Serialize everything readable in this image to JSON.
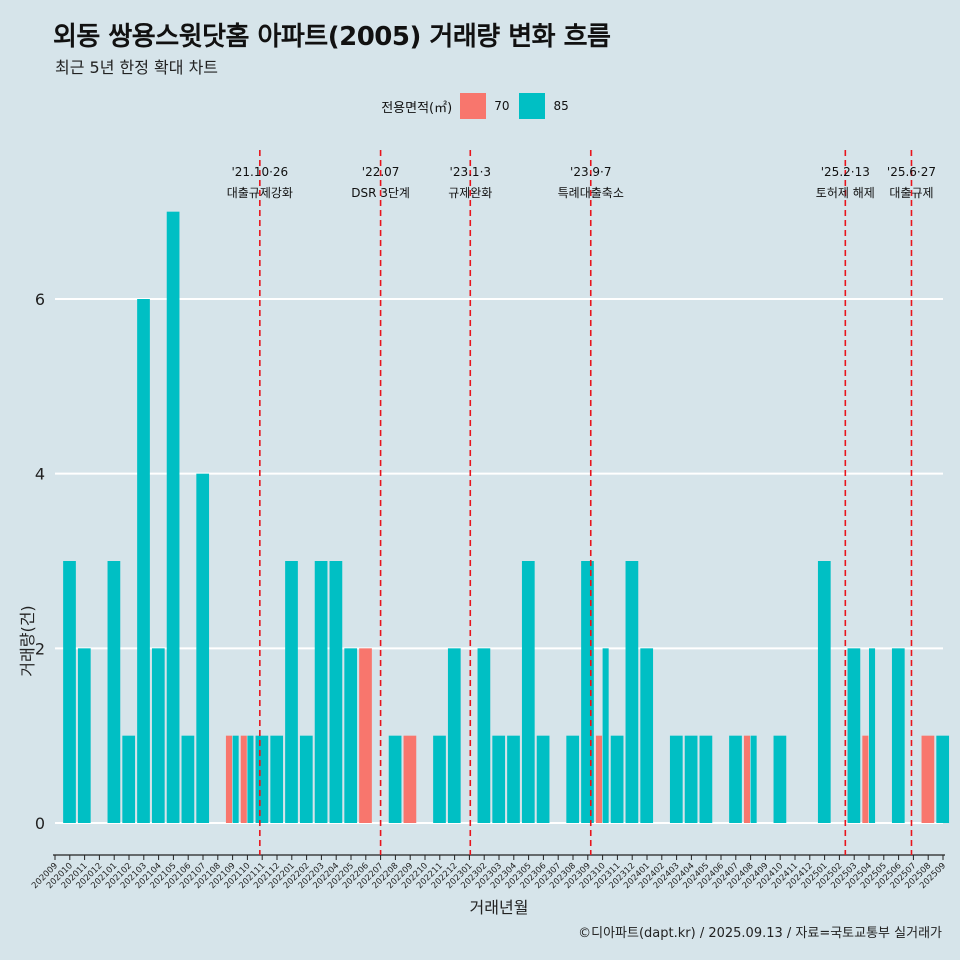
{
  "title": "외동 쌍용스윗닷홈 아파트(2005) 거래량 변화 흐름",
  "subtitle": "최근 5년 한정 확대 차트",
  "legend": {
    "title": "전용면적(㎡)",
    "items": [
      {
        "label": "70",
        "color": "#f8766d"
      },
      {
        "label": "85",
        "color": "#00bfc4"
      }
    ]
  },
  "caption": "©디아파트(dapt.kr) / 2025.09.13 / 자료=국토교통부 실거래가",
  "chart_data": {
    "type": "bar",
    "xlabel": "거래년월",
    "ylabel": "거래량(건)",
    "ylim": [
      0,
      7
    ],
    "yticks": [
      0,
      2,
      4,
      6
    ],
    "grid": true,
    "legend_position": "top",
    "categories": [
      "202009",
      "202010",
      "202011",
      "202012",
      "202101",
      "202102",
      "202103",
      "202104",
      "202105",
      "202106",
      "202107",
      "202108",
      "202109",
      "202110",
      "202111",
      "202112",
      "202201",
      "202202",
      "202203",
      "202204",
      "202205",
      "202206",
      "202207",
      "202208",
      "202209",
      "202210",
      "202211",
      "202212",
      "202301",
      "202302",
      "202303",
      "202304",
      "202305",
      "202306",
      "202307",
      "202308",
      "202309",
      "202310",
      "202311",
      "202312",
      "202401",
      "202402",
      "202403",
      "202404",
      "202405",
      "202406",
      "202407",
      "202408",
      "202409",
      "202410",
      "202411",
      "202412",
      "202501",
      "202502",
      "202503",
      "202504",
      "202505",
      "202506",
      "202507",
      "202508",
      "202509"
    ],
    "series": [
      {
        "name": "70",
        "color": "#f8766d",
        "values": [
          0,
          0,
          0,
          0,
          0,
          0,
          0,
          0,
          0,
          0,
          0,
          0,
          1,
          1,
          0,
          0,
          0,
          0,
          0,
          0,
          0,
          2,
          0,
          0,
          1,
          0,
          0,
          0,
          0,
          0,
          0,
          0,
          0,
          0,
          0,
          0,
          0,
          1,
          0,
          0,
          0,
          0,
          0,
          0,
          0,
          0,
          0,
          1,
          0,
          0,
          0,
          0,
          0,
          0,
          0,
          1,
          0,
          0,
          0,
          1,
          0
        ]
      },
      {
        "name": "85",
        "color": "#00bfc4",
        "values": [
          0,
          3,
          2,
          0,
          3,
          1,
          6,
          2,
          7,
          1,
          4,
          0,
          1,
          1,
          1,
          1,
          3,
          1,
          3,
          3,
          2,
          0,
          0,
          1,
          0,
          0,
          1,
          2,
          0,
          2,
          1,
          1,
          3,
          1,
          0,
          1,
          3,
          2,
          1,
          3,
          2,
          0,
          1,
          1,
          1,
          0,
          1,
          1,
          0,
          1,
          0,
          0,
          3,
          0,
          2,
          2,
          0,
          2,
          0,
          0,
          1
        ]
      }
    ],
    "events": [
      {
        "date": "'21.10·26",
        "label": "대출규제강화",
        "after": "202110",
        "frac": 0.84
      },
      {
        "date": "'22.07",
        "label": "DSR 3단계",
        "after": "202207",
        "frac": 0.0
      },
      {
        "date": "'23.1·3",
        "label": "규제완화",
        "after": "202301",
        "frac": 0.06
      },
      {
        "date": "'23.9·7",
        "label": "특례대출축소",
        "after": "202309",
        "frac": 0.2
      },
      {
        "date": "'25.2·13",
        "label": "토허제 해제",
        "after": "202502",
        "frac": 0.4
      },
      {
        "date": "'25.6·27",
        "label": "대출규제",
        "after": "202506",
        "frac": 0.87
      }
    ]
  }
}
